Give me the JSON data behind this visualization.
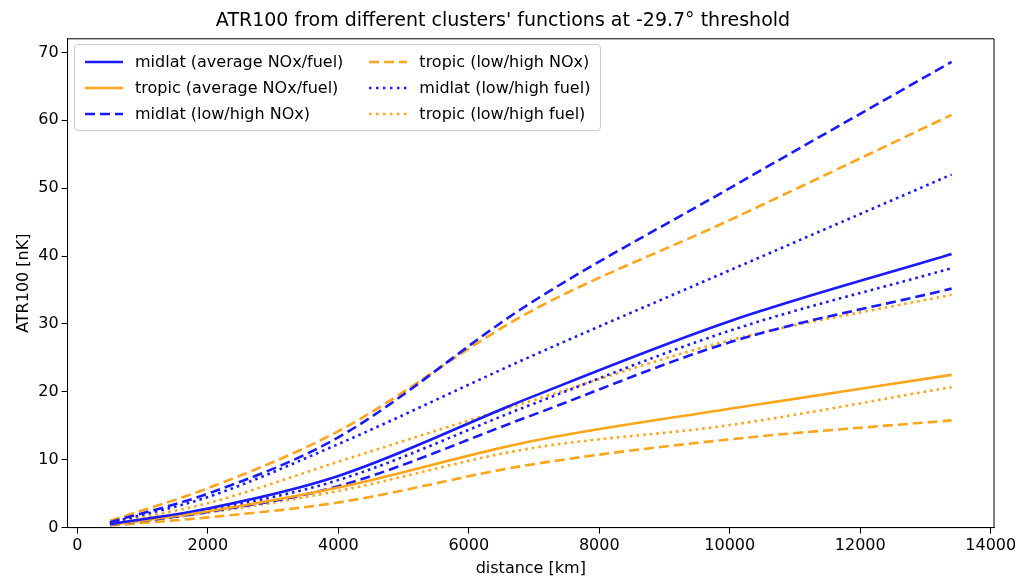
{
  "chart_data": {
    "type": "line",
    "title": "ATR100 from different clusters' functions at -29.7° threshold",
    "xlabel": "distance [km]",
    "ylabel": "ATR100 [nK]",
    "x": [
      500,
      2000,
      4000,
      6900,
      10000,
      13400
    ],
    "xlim": [
      -150,
      14050
    ],
    "xticks": [
      0,
      2000,
      4000,
      6000,
      8000,
      10000,
      12000,
      14000
    ],
    "ylim": [
      0,
      72
    ],
    "yticks": [
      0,
      10,
      20,
      30,
      40,
      50,
      60,
      70
    ],
    "grid": false,
    "legend": "top left",
    "marker": "none",
    "series": [
      {
        "name": "midlat (average NOx/fuel)",
        "color": "#1a1aff",
        "line_style": "solid",
        "values": [
          0.5,
          2.8,
          7.6,
          19,
          30.4,
          40.3
        ]
      },
      {
        "name": "tropic (average NOx/fuel)",
        "color": "#ffa51a",
        "line_style": "solid",
        "values": [
          0.4,
          2.4,
          5.9,
          12.6,
          17.5,
          22.5
        ]
      },
      {
        "name": "midlat (low/high NOx)",
        "color": "#1a1aff",
        "line_style": "dashed",
        "values": [
          0.8,
          5,
          13.3,
          32.8,
          50,
          68.6
        ]
      },
      {
        "color": "#1a1aff",
        "line_style": "dashed",
        "values": [
          0.4,
          2.3,
          6.1,
          16.3,
          27.3,
          35.2
        ]
      },
      {
        "name": "tropic (low/high NOx)",
        "color": "#ffa51a",
        "line_style": "dashed",
        "values": [
          1,
          5.8,
          14.2,
          31.6,
          45.3,
          60.8
        ]
      },
      {
        "color": "#ffa51a",
        "line_style": "dashed",
        "values": [
          0.3,
          1.5,
          3.7,
          9.2,
          13,
          15.8
        ]
      },
      {
        "name": "midlat (low/high fuel)",
        "color": "#1a1aff",
        "line_style": "dotted",
        "values": [
          0.7,
          4.5,
          12.3,
          25,
          37.9,
          52
        ]
      },
      {
        "color": "#1a1aff",
        "line_style": "dotted",
        "values": [
          0.5,
          2.6,
          7,
          17.9,
          29,
          38.2
        ]
      },
      {
        "name": "tropic (low/high fuel)",
        "color": "#ffa51a",
        "line_style": "dotted",
        "values": [
          0.6,
          3.6,
          9.7,
          18.5,
          27.6,
          34.3
        ]
      },
      {
        "color": "#ffa51a",
        "line_style": "dotted",
        "values": [
          0.4,
          2.2,
          5.4,
          11.6,
          15.1,
          20.7
        ]
      }
    ]
  }
}
